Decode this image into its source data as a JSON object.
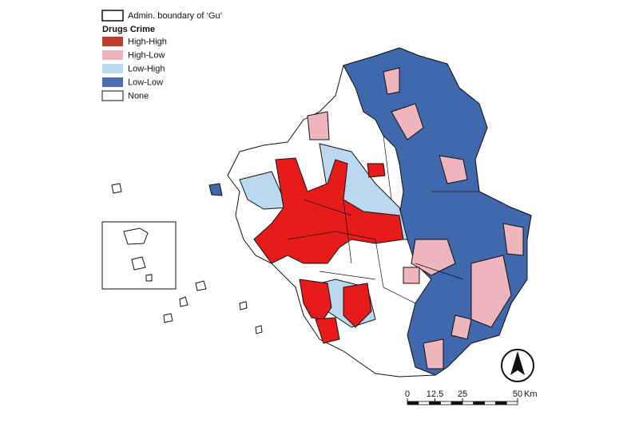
{
  "legend": {
    "boundary": "Admin. boundary of ‘Gu’",
    "title": "Drugs Crime",
    "items": [
      {
        "label": "High-High",
        "color": "#c23a2e"
      },
      {
        "label": "High-Low",
        "color": "#efb5bd"
      },
      {
        "label": "Low-High",
        "color": "#bcd8ee"
      },
      {
        "label": "Low-Low",
        "color": "#4a6db0"
      },
      {
        "label": "None",
        "color": "#ffffff"
      }
    ]
  },
  "scale_bar": {
    "ticks": [
      0,
      12.5,
      25,
      50
    ],
    "unit": "Km"
  }
}
